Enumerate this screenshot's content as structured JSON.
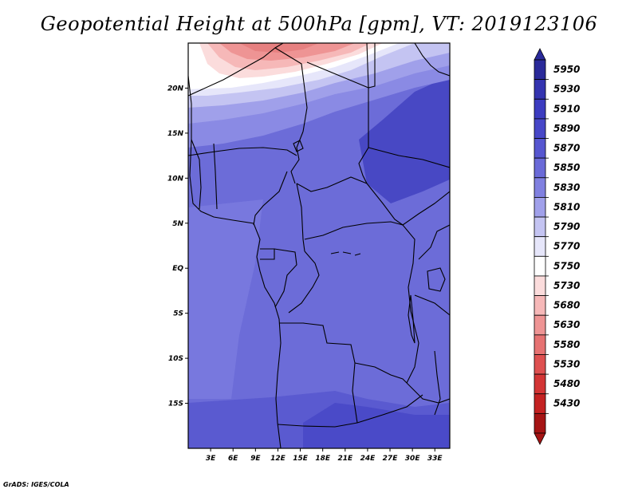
{
  "title": "Geopotential Height at 500hPa [gpm], VT: 2019123106",
  "footer": "GrADS: IGES/COLA",
  "map": {
    "lon_range": [
      0,
      35
    ],
    "lat_range": [
      -20,
      25
    ],
    "x_ticks": [
      "3E",
      "6E",
      "9E",
      "12E",
      "15E",
      "18E",
      "21E",
      "24E",
      "27E",
      "30E",
      "33E"
    ],
    "x_tick_values": [
      3,
      6,
      9,
      12,
      15,
      18,
      21,
      24,
      27,
      30,
      33
    ],
    "y_ticks": [
      "20N",
      "15N",
      "10N",
      "5N",
      "EQ",
      "5S",
      "10S",
      "15S"
    ],
    "y_tick_values": [
      20,
      15,
      10,
      5,
      0,
      -5,
      -10,
      -15
    ]
  },
  "colorbar": {
    "labels": [
      "5950",
      "5930",
      "5910",
      "5890",
      "5870",
      "5850",
      "5830",
      "5810",
      "5790",
      "5770",
      "5750",
      "5730",
      "5680",
      "5630",
      "5580",
      "5530",
      "5480",
      "5430"
    ],
    "colors": [
      "#2a2a9a",
      "#3434b0",
      "#3c3cc0",
      "#4747c8",
      "#5656d0",
      "#6a6ad8",
      "#8080e0",
      "#a0a0ea",
      "#c4c4f2",
      "#e6e6fa",
      "#ffffff",
      "#fbdcdc",
      "#f6b8b8",
      "#ee9494",
      "#e67272",
      "#de5050",
      "#d33535",
      "#c42222",
      "#a51414"
    ],
    "arrow_top_color": "#2a2a9a",
    "arrow_bottom_color": "#a51414"
  }
}
